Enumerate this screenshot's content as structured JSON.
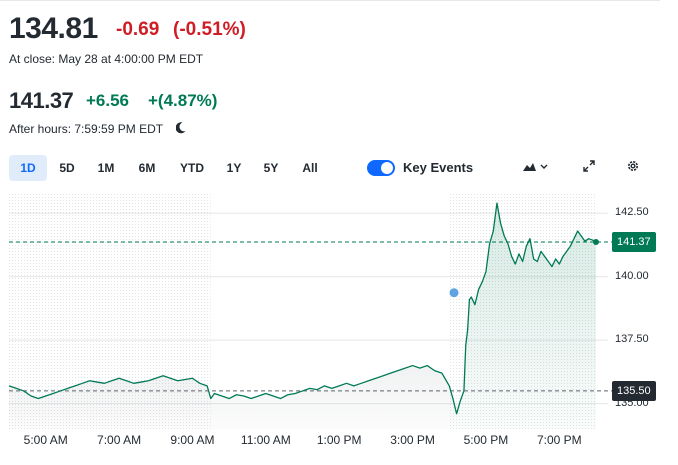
{
  "quote": {
    "close_price": "134.81",
    "close_change": "-0.69",
    "close_change_pct": "(-0.51%)",
    "close_time": "At close: May 28 at 4:00:00 PM EDT",
    "after_price": "141.37",
    "after_change": "+6.56",
    "after_change_pct": "+(4.87%)",
    "after_time": "After hours: 7:59:59 PM EDT"
  },
  "ranges": [
    "1D",
    "5D",
    "1M",
    "6M",
    "YTD",
    "1Y",
    "5Y",
    "All"
  ],
  "active_range": "1D",
  "key_events": {
    "label": "Key Events",
    "enabled": true
  },
  "icons": {
    "after_hours": "moon-icon",
    "chart_type": "mountain-chart-icon",
    "expand": "expand-icon",
    "settings": "gear-icon"
  },
  "colors": {
    "negative": "#d01c25",
    "positive": "#007a55",
    "accent": "#0f69ff",
    "reference_badge": "#232a31",
    "last_badge": "#007a55"
  },
  "chart_data": {
    "type": "area",
    "x_labels": [
      "5:00 AM",
      "7:00 AM",
      "9:00 AM",
      "11:00 AM",
      "1:00 PM",
      "3:00 PM",
      "5:00 PM",
      "7:00 PM"
    ],
    "y_ticks": [
      "142.50",
      "140.00",
      "137.50",
      "135.00"
    ],
    "ylim": [
      134.0,
      143.3
    ],
    "xlim_hours": [
      4.0,
      20.0
    ],
    "reference_line": {
      "value": 135.5,
      "label": "135.50"
    },
    "last_line": {
      "value": 141.37,
      "label": "141.37"
    },
    "event_marker": {
      "x_hour": 16.13,
      "y": 139.37
    },
    "sessions": [
      "pre-market",
      "regular",
      "after-hours"
    ],
    "series": [
      {
        "points": [
          [
            4.0,
            135.7
          ],
          [
            4.2,
            135.6
          ],
          [
            4.4,
            135.5
          ],
          [
            4.6,
            135.3
          ],
          [
            4.8,
            135.2
          ],
          [
            5.0,
            135.3
          ],
          [
            5.2,
            135.4
          ],
          [
            5.4,
            135.5
          ],
          [
            5.6,
            135.6
          ],
          [
            5.8,
            135.7
          ],
          [
            6.0,
            135.8
          ],
          [
            6.2,
            135.9
          ],
          [
            6.4,
            135.85
          ],
          [
            6.6,
            135.8
          ],
          [
            6.8,
            135.9
          ],
          [
            7.0,
            136.0
          ],
          [
            7.2,
            135.9
          ],
          [
            7.4,
            135.8
          ],
          [
            7.6,
            135.85
          ],
          [
            7.8,
            135.9
          ],
          [
            8.0,
            136.0
          ],
          [
            8.2,
            136.1
          ],
          [
            8.4,
            136.0
          ],
          [
            8.6,
            135.9
          ],
          [
            8.8,
            135.95
          ],
          [
            9.0,
            136.0
          ],
          [
            9.2,
            135.8
          ],
          [
            9.4,
            135.7
          ],
          [
            9.5,
            135.2
          ],
          [
            9.6,
            135.4
          ],
          [
            9.8,
            135.3
          ],
          [
            10.0,
            135.2
          ],
          [
            10.2,
            135.35
          ],
          [
            10.4,
            135.3
          ],
          [
            10.6,
            135.2
          ],
          [
            10.8,
            135.3
          ],
          [
            11.0,
            135.4
          ],
          [
            11.2,
            135.3
          ],
          [
            11.4,
            135.2
          ],
          [
            11.6,
            135.35
          ],
          [
            11.8,
            135.4
          ],
          [
            12.0,
            135.5
          ],
          [
            12.2,
            135.6
          ],
          [
            12.4,
            135.55
          ],
          [
            12.6,
            135.7
          ],
          [
            12.8,
            135.6
          ],
          [
            13.0,
            135.7
          ],
          [
            13.2,
            135.8
          ],
          [
            13.4,
            135.7
          ],
          [
            13.6,
            135.8
          ],
          [
            13.8,
            135.9
          ],
          [
            14.0,
            136.0
          ],
          [
            14.2,
            136.1
          ],
          [
            14.4,
            136.2
          ],
          [
            14.6,
            136.3
          ],
          [
            14.8,
            136.4
          ],
          [
            15.0,
            136.5
          ],
          [
            15.2,
            136.4
          ],
          [
            15.4,
            136.5
          ],
          [
            15.6,
            136.3
          ],
          [
            15.8,
            136.2
          ],
          [
            16.0,
            135.7
          ],
          [
            16.1,
            135.2
          ],
          [
            16.2,
            134.6
          ],
          [
            16.3,
            135.1
          ],
          [
            16.4,
            135.5
          ],
          [
            16.45,
            137.3
          ],
          [
            16.5,
            137.9
          ],
          [
            16.55,
            139.1
          ],
          [
            16.6,
            139.2
          ],
          [
            16.7,
            138.9
          ],
          [
            16.8,
            139.5
          ],
          [
            16.9,
            139.8
          ],
          [
            17.0,
            140.2
          ],
          [
            17.1,
            141.3
          ],
          [
            17.2,
            141.8
          ],
          [
            17.3,
            142.9
          ],
          [
            17.4,
            142.1
          ],
          [
            17.5,
            141.6
          ],
          [
            17.6,
            141.3
          ],
          [
            17.7,
            140.8
          ],
          [
            17.8,
            140.5
          ],
          [
            17.9,
            140.9
          ],
          [
            18.0,
            140.6
          ],
          [
            18.1,
            141.2
          ],
          [
            18.2,
            141.5
          ],
          [
            18.3,
            140.7
          ],
          [
            18.4,
            140.6
          ],
          [
            18.5,
            141.0
          ],
          [
            18.6,
            140.8
          ],
          [
            18.7,
            140.6
          ],
          [
            18.8,
            140.4
          ],
          [
            18.9,
            140.7
          ],
          [
            19.0,
            140.5
          ],
          [
            19.1,
            140.8
          ],
          [
            19.2,
            141.0
          ],
          [
            19.3,
            141.2
          ],
          [
            19.4,
            141.5
          ],
          [
            19.5,
            141.8
          ],
          [
            19.6,
            141.6
          ],
          [
            19.7,
            141.4
          ],
          [
            19.8,
            141.5
          ],
          [
            19.9,
            141.45
          ],
          [
            20.0,
            141.37
          ]
        ]
      }
    ]
  }
}
